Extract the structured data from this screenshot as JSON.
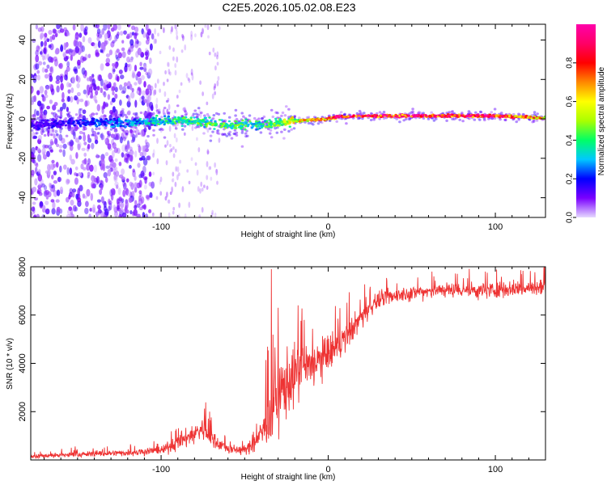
{
  "title": "C2E5.2026.105.02.08.E23",
  "chart_data": [
    {
      "type": "heatmap",
      "title": "C2E5.2026.105.02.08.E23",
      "xlabel": "Height of straight line (km)",
      "ylabel": "Frequency (Hz)",
      "xlim": [
        -178,
        130
      ],
      "ylim": [
        -50,
        48
      ],
      "xticks": [
        -100,
        0,
        100
      ],
      "yticks": [
        -40,
        -20,
        0,
        20,
        40
      ],
      "xtick_labels": [
        "-100",
        "0",
        "100"
      ],
      "ytick_labels": [
        "-40",
        "-20",
        "0",
        "20",
        "40"
      ],
      "colorbar": {
        "label": "Normalized spectral amplitude",
        "range": [
          0.0,
          1.0
        ],
        "ticks": [
          0.0,
          0.2,
          0.4,
          0.6,
          0.8
        ],
        "tick_labels": [
          "0.0",
          "0.2",
          "0.4",
          "0.6",
          "0.8"
        ],
        "colormap": [
          "#e6d9ff",
          "#7a00ff",
          "#0000ff",
          "#00c8ff",
          "#00ff66",
          "#aaff00",
          "#ffff00",
          "#ff8800",
          "#ff0000",
          "#ff0066",
          "#ff00aa"
        ]
      },
      "ridge": {
        "x": [
          -178,
          -150,
          -120,
          -100,
          -80,
          -60,
          -40,
          -20,
          0,
          5,
          20,
          60,
          100,
          130
        ],
        "frequency": [
          -3,
          -2,
          -2,
          -1,
          -1,
          -3,
          -3,
          -1,
          0,
          1,
          1.5,
          1.5,
          1.5,
          0.5
        ],
        "amplitude": [
          0.15,
          0.2,
          0.3,
          0.4,
          0.45,
          0.45,
          0.4,
          0.6,
          0.85,
          0.95,
          0.95,
          0.95,
          0.95,
          0.7
        ]
      },
      "noise_region_x": [
        -178,
        -105
      ],
      "speckle_region_x": [
        -105,
        -65
      ]
    },
    {
      "type": "line",
      "xlabel": "Height of straight line (km)",
      "ylabel": "SNR (10 * v/v)",
      "xlim": [
        -178,
        130
      ],
      "ylim": [
        0,
        8000
      ],
      "xticks": [
        -100,
        0,
        100
      ],
      "yticks": [
        2000,
        4000,
        6000,
        8000
      ],
      "xtick_labels": [
        "-100",
        "0",
        "100"
      ],
      "ytick_labels": [
        "2000",
        "4000",
        "6000",
        "8000"
      ],
      "color": "#ee3333",
      "series": [
        {
          "name": "SNR",
          "x": [
            -178,
            -160,
            -140,
            -120,
            -100,
            -90,
            -80,
            -75,
            -70,
            -60,
            -50,
            -45,
            -40,
            -35,
            -30,
            -25,
            -20,
            -15,
            -10,
            -5,
            0,
            5,
            10,
            15,
            20,
            25,
            30,
            40,
            50,
            60,
            70,
            80,
            90,
            100,
            110,
            120,
            130
          ],
          "y": [
            150,
            200,
            250,
            300,
            400,
            700,
            1100,
            1300,
            900,
            450,
            400,
            600,
            1100,
            1800,
            2600,
            3200,
            3500,
            3700,
            3900,
            4100,
            4300,
            4700,
            5000,
            5500,
            5900,
            6300,
            6600,
            6800,
            6900,
            7000,
            7050,
            7050,
            7000,
            7050,
            7100,
            7100,
            7150
          ],
          "noise": [
            120,
            150,
            150,
            180,
            250,
            400,
            600,
            650,
            500,
            250,
            250,
            400,
            800,
            1600,
            1800,
            2000,
            1600,
            1500,
            1300,
            1200,
            1100,
            900,
            800,
            700,
            600,
            500,
            450,
            400,
            400,
            400,
            400,
            400,
            450,
            450,
            450,
            450,
            450
          ],
          "spikes": [
            [
              -34,
              7900
            ],
            [
              -30,
              6300
            ],
            [
              -18,
              6400
            ],
            [
              13,
              5600
            ],
            [
              62,
              7800
            ],
            [
              94,
              7800
            ]
          ]
        }
      ]
    }
  ]
}
